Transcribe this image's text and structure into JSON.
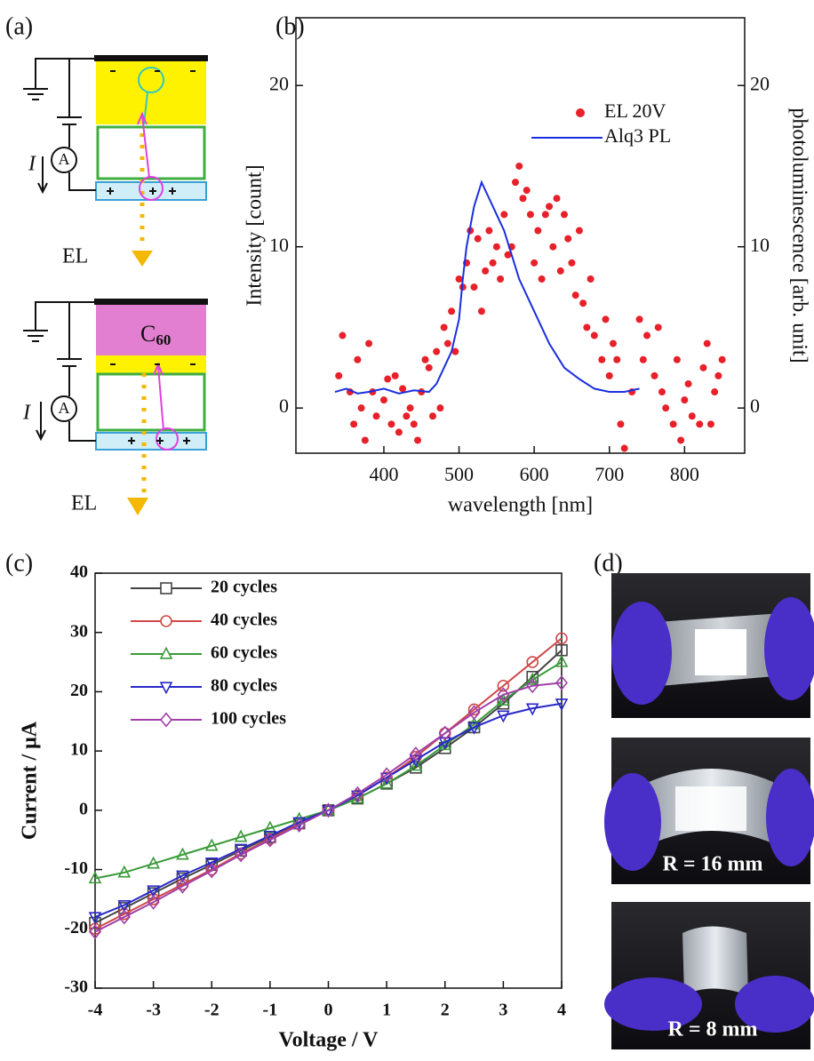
{
  "panel_labels": [
    "(a)",
    "(b)",
    "(c)",
    "(d)"
  ],
  "diagram": {
    "top": {
      "current": "I",
      "meter": "A",
      "output": "EL"
    },
    "bottom": {
      "layer": "C",
      "layer_subscript": "60",
      "current": "I",
      "meter": "A",
      "output": "EL"
    }
  },
  "photos": {
    "captions": [
      "R = 16 mm",
      "R = 8 mm"
    ]
  },
  "chart_data": [
    {
      "type": "scatter",
      "xlabel": "wavelength [nm]",
      "ylabel": "Intensity [count]",
      "y2label": "photoluminescence [arb. unit]",
      "xlim": [
        283,
        880
      ],
      "xticks": [
        400,
        500,
        600,
        700,
        800
      ],
      "ylim": [
        -2.8,
        24.2
      ],
      "yticks": [
        0,
        10,
        20
      ],
      "y2lim": [
        -2.8,
        24.2
      ],
      "y2ticks": [
        0,
        10,
        20
      ],
      "legend": "upper right",
      "series": [
        {
          "name": "EL 20V",
          "color": "#e8202a",
          "mode": "markers",
          "x": [
            340,
            345,
            355,
            360,
            365,
            370,
            375,
            380,
            385,
            390,
            400,
            405,
            410,
            415,
            420,
            425,
            430,
            435,
            440,
            445,
            450,
            455,
            460,
            465,
            470,
            475,
            480,
            485,
            490,
            495,
            500,
            505,
            510,
            515,
            520,
            525,
            530,
            535,
            540,
            545,
            550,
            555,
            560,
            565,
            570,
            575,
            580,
            585,
            590,
            595,
            600,
            605,
            610,
            615,
            620,
            625,
            630,
            635,
            640,
            645,
            650,
            655,
            660,
            665,
            670,
            675,
            680,
            690,
            695,
            700,
            705,
            710,
            715,
            720,
            730,
            740,
            745,
            750,
            760,
            765,
            770,
            775,
            785,
            790,
            795,
            800,
            805,
            810,
            820,
            825,
            830,
            835,
            840,
            845,
            850
          ],
          "values": [
            2,
            4.5,
            1,
            -1,
            3,
            0,
            -2,
            4,
            1,
            -0.5,
            0.5,
            1.8,
            -1,
            2,
            -1.5,
            1.2,
            -0.5,
            0,
            -1,
            -2,
            1,
            3,
            2.5,
            -0.5,
            3.5,
            0,
            5,
            4,
            6,
            3.5,
            8,
            7.5,
            9,
            11,
            7.5,
            10.5,
            6,
            8.5,
            11,
            9,
            10,
            8,
            12,
            9.5,
            10,
            14,
            15,
            13,
            13.5,
            12,
            9,
            11,
            8,
            12,
            12.5,
            10,
            13,
            8.5,
            12,
            10.5,
            9,
            7,
            11,
            6.5,
            5,
            8,
            4.5,
            3,
            5.5,
            2,
            4,
            3,
            -1,
            -2.5,
            1,
            5.5,
            3,
            4.5,
            2,
            5,
            1,
            0,
            -1,
            3,
            -2,
            0.5,
            1.5,
            -0.5,
            -1,
            2.5,
            4,
            -1,
            1,
            2,
            3
          ]
        },
        {
          "name": "Alq3 PL",
          "color": "#1a2ee0",
          "mode": "line",
          "axis": "y2",
          "x": [
            335,
            350,
            365,
            380,
            400,
            420,
            440,
            460,
            470,
            480,
            490,
            500,
            505,
            510,
            520,
            530,
            540,
            550,
            560,
            570,
            580,
            600,
            620,
            640,
            660,
            680,
            700,
            720,
            740
          ],
          "values": [
            1,
            1.2,
            0.9,
            1,
            1.2,
            0.9,
            1.1,
            1,
            1.5,
            2.5,
            3.5,
            5.5,
            8,
            10,
            12.5,
            14,
            13,
            12,
            11,
            9.5,
            8,
            6,
            4,
            2.5,
            1.8,
            1.2,
            1,
            1,
            1.2
          ]
        }
      ]
    },
    {
      "type": "line",
      "xlabel": "Voltage / V",
      "ylabel": "Current / μA",
      "xlim": [
        -4,
        4
      ],
      "xticks": [
        -4,
        -3,
        -2,
        -1,
        0,
        1,
        2,
        3,
        4
      ],
      "ylim": [
        -30,
        40
      ],
      "yticks": [
        -30,
        -20,
        -10,
        0,
        10,
        20,
        30,
        40
      ],
      "legend": "upper left",
      "x": [
        -4,
        -3.5,
        -3,
        -2.5,
        -2,
        -1.5,
        -1,
        -0.5,
        0,
        0.5,
        1,
        1.5,
        2,
        2.5,
        3,
        3.5,
        4
      ],
      "series": [
        {
          "name": "20 cycles",
          "color": "#444444",
          "marker": "square",
          "values": [
            -19,
            -16.5,
            -14,
            -11.5,
            -9.2,
            -6.8,
            -4.5,
            -2.2,
            0,
            2,
            4.5,
            7.2,
            10.5,
            14,
            18,
            22.5,
            27
          ]
        },
        {
          "name": "40 cycles",
          "color": "#d04848",
          "marker": "circle",
          "values": [
            -20,
            -17.5,
            -15,
            -12.5,
            -10,
            -7.3,
            -4.8,
            -2.3,
            0,
            2.5,
            5.5,
            9,
            13,
            17,
            21,
            25,
            29
          ]
        },
        {
          "name": "60 cycles",
          "color": "#3a9a3a",
          "marker": "triangle",
          "values": [
            -11.5,
            -10.5,
            -9,
            -7.5,
            -6,
            -4.5,
            -3,
            -1.5,
            0,
            2,
            4.5,
            7.5,
            11,
            14.5,
            18.5,
            22,
            25
          ]
        },
        {
          "name": "80 cycles",
          "color": "#2828c8",
          "marker": "triangle-down",
          "values": [
            -18,
            -16,
            -13.5,
            -11,
            -8.8,
            -6.5,
            -4.3,
            -2,
            0,
            2.5,
            5.5,
            8.5,
            11.5,
            14,
            16,
            17.2,
            18
          ]
        },
        {
          "name": "100 cycles",
          "color": "#a040a8",
          "marker": "diamond",
          "values": [
            -20.5,
            -18,
            -15.5,
            -12.8,
            -10.2,
            -7.5,
            -5,
            -2.5,
            0,
            2.8,
            6,
            9.5,
            13,
            16.5,
            19.5,
            21,
            21.5
          ]
        }
      ]
    }
  ]
}
